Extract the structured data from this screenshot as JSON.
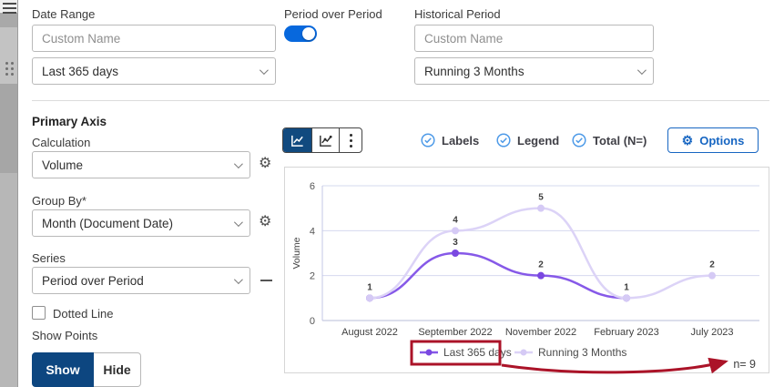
{
  "header": {
    "date_range": {
      "label": "Date Range",
      "placeholder": "Custom Name",
      "value": "Last 365 days"
    },
    "period_over_period": {
      "label": "Period over Period",
      "enabled": true
    },
    "historical_period": {
      "label": "Historical Period",
      "placeholder": "Custom Name",
      "value": "Running 3 Months"
    }
  },
  "sidebar": {
    "title": "Primary Axis",
    "calculation": {
      "label": "Calculation",
      "value": "Volume"
    },
    "group_by": {
      "label": "Group By*",
      "value": "Month (Document Date)"
    },
    "series": {
      "label": "Series",
      "value": "Period over Period"
    },
    "dotted_line": {
      "label": "Dotted Line",
      "checked": false
    },
    "show_points": {
      "label": "Show Points",
      "show": "Show",
      "hide": "Hide",
      "selected": "Show"
    }
  },
  "toolbar": {
    "toggles": [
      {
        "label": "Labels",
        "checked": true
      },
      {
        "label": "Legend",
        "checked": true
      },
      {
        "label": "Total (N=)",
        "checked": true
      }
    ],
    "options_label": "Options"
  },
  "chart_data": {
    "type": "line",
    "title": "",
    "xlabel": "",
    "ylabel": "Volume",
    "ylim": [
      0,
      6
    ],
    "yticks": [
      0,
      2,
      4,
      6
    ],
    "grid": true,
    "legend_position": "bottom",
    "categories": [
      "August 2022",
      "September 2022",
      "November 2022",
      "February 2023",
      "July 2023"
    ],
    "series": [
      {
        "name": "Last 365 days",
        "color": "#8659e8",
        "marker_color": "#7a48e0",
        "values": [
          1,
          3,
          2,
          1,
          null
        ]
      },
      {
        "name": "Running 3 Months",
        "color": "#dcd3f7",
        "marker_color": "#d5caf5",
        "values": [
          1,
          4,
          5,
          1,
          2
        ]
      }
    ],
    "total_n": 9,
    "total_n_label": "n= 9"
  },
  "annotation": {
    "color": "#ab1328",
    "highlighted_legend_item": "Last 365 days",
    "arrow_target": "n= 9"
  },
  "colors": {
    "toggle_on": "#0768dd",
    "active_button": "#114a7f",
    "show_button": "#0d4680",
    "check_blue": "#4f9be8",
    "options_blue": "#1766c2",
    "gridline": "#d6d8ef",
    "axis": "#c3c7e6"
  }
}
